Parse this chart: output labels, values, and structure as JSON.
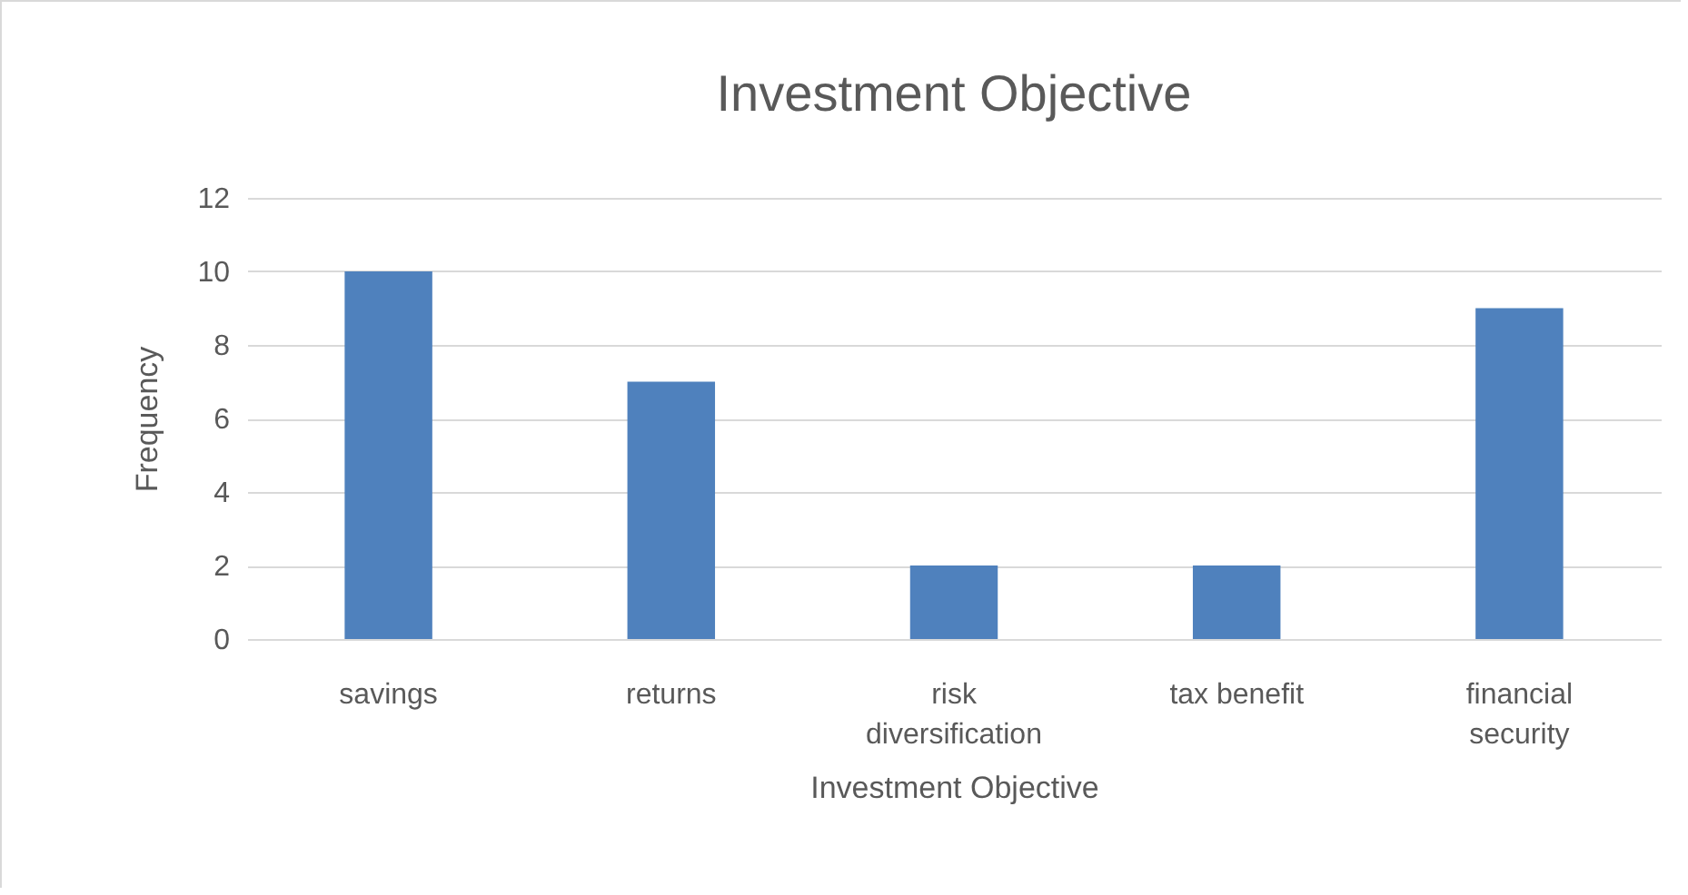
{
  "chart_data": {
    "type": "bar",
    "title": "Investment Objective",
    "xlabel": "Investment Objective",
    "ylabel": "Frequency",
    "categories": [
      "savings",
      "returns",
      "risk diversification",
      "tax benefit",
      "financial security"
    ],
    "values": [
      10,
      7,
      2,
      2,
      9
    ],
    "color": "#4f81bd",
    "ylim": [
      0,
      12
    ],
    "yticks": [
      0,
      2,
      4,
      6,
      8,
      10,
      12
    ],
    "grid": "y",
    "legend": false
  }
}
